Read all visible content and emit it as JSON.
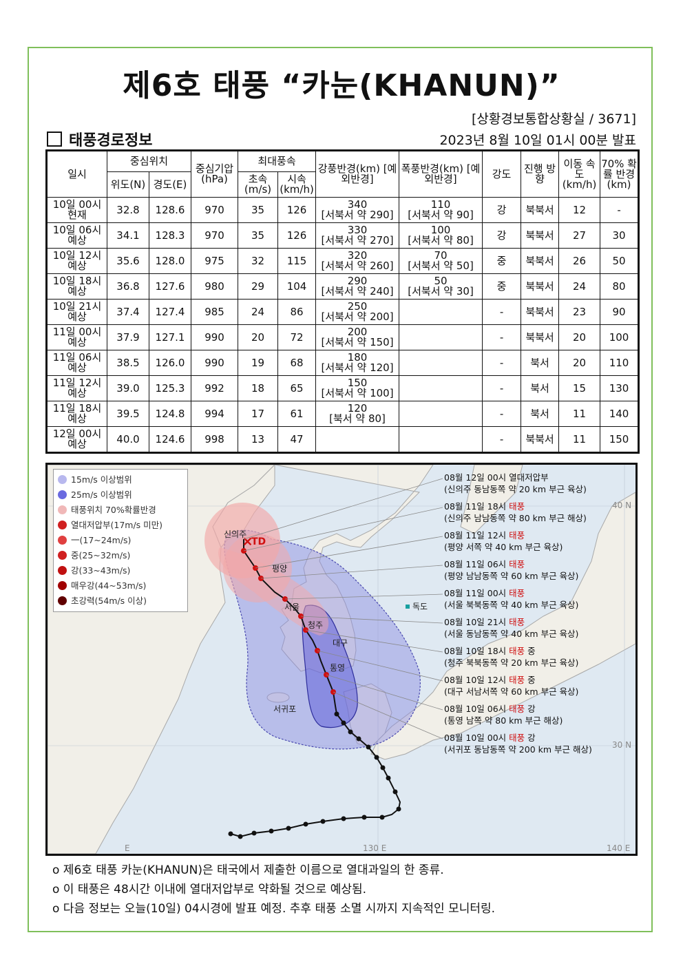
{
  "header": {
    "title": "제6호 태풍 “카눈(KHANUN)”",
    "office": "[상황경보통합상황실 / 3671]",
    "section": "태풍경로정보",
    "issued": "2023년 8월 10일 01시 00분 발표"
  },
  "table": {
    "h_time": "일시",
    "h_center": "중심위치",
    "h_lat": "위도(N)",
    "h_lon": "경도(E)",
    "h_pressure": "중심기압 (hPa)",
    "h_wind": "최대풍속",
    "h_ms": "초속 (m/s)",
    "h_kmh": "시속 (km/h)",
    "h_strong": "강풍반경(km) [예외반경]",
    "h_storm": "폭풍반경(km) [예외반경]",
    "h_intensity": "강도",
    "h_dir": "진행 방향",
    "h_speed": "이동 속도 (km/h)",
    "h_prob": "70% 확률 반경 (km)",
    "rows": [
      {
        "time": "10일 00시",
        "status": "현재",
        "lat": "32.8",
        "lon": "128.6",
        "p": "970",
        "ms": "35",
        "kmh": "126",
        "strong": "340",
        "strong_x": "[서북서 약 290]",
        "storm": "110",
        "storm_x": "[서북서 약 90]",
        "int": "강",
        "dir": "북북서",
        "spd": "12",
        "prob": "-"
      },
      {
        "time": "10일 06시",
        "status": "예상",
        "lat": "34.1",
        "lon": "128.3",
        "p": "970",
        "ms": "35",
        "kmh": "126",
        "strong": "330",
        "strong_x": "[서북서 약 270]",
        "storm": "100",
        "storm_x": "[서북서 약 80]",
        "int": "강",
        "dir": "북북서",
        "spd": "27",
        "prob": "30"
      },
      {
        "time": "10일 12시",
        "status": "예상",
        "lat": "35.6",
        "lon": "128.0",
        "p": "975",
        "ms": "32",
        "kmh": "115",
        "strong": "320",
        "strong_x": "[서북서 약 260]",
        "storm": "70",
        "storm_x": "[서북서 약 50]",
        "int": "중",
        "dir": "북북서",
        "spd": "26",
        "prob": "50"
      },
      {
        "time": "10일 18시",
        "status": "예상",
        "lat": "36.8",
        "lon": "127.6",
        "p": "980",
        "ms": "29",
        "kmh": "104",
        "strong": "290",
        "strong_x": "[서북서 약 240]",
        "storm": "50",
        "storm_x": "[서북서 약 30]",
        "int": "중",
        "dir": "북북서",
        "spd": "24",
        "prob": "80"
      },
      {
        "time": "10일 21시",
        "status": "예상",
        "lat": "37.4",
        "lon": "127.4",
        "p": "985",
        "ms": "24",
        "kmh": "86",
        "strong": "250",
        "strong_x": "[서북서 약 200]",
        "storm": "",
        "storm_x": "",
        "int": "-",
        "dir": "북북서",
        "spd": "23",
        "prob": "90"
      },
      {
        "time": "11일 00시",
        "status": "예상",
        "lat": "37.9",
        "lon": "127.1",
        "p": "990",
        "ms": "20",
        "kmh": "72",
        "strong": "200",
        "strong_x": "[서북서 약 150]",
        "storm": "",
        "storm_x": "",
        "int": "-",
        "dir": "북북서",
        "spd": "20",
        "prob": "100"
      },
      {
        "time": "11일 06시",
        "status": "예상",
        "lat": "38.5",
        "lon": "126.0",
        "p": "990",
        "ms": "19",
        "kmh": "68",
        "strong": "180",
        "strong_x": "[서북서 약 120]",
        "storm": "",
        "storm_x": "",
        "int": "-",
        "dir": "북서",
        "spd": "20",
        "prob": "110"
      },
      {
        "time": "11일 12시",
        "status": "예상",
        "lat": "39.0",
        "lon": "125.3",
        "p": "992",
        "ms": "18",
        "kmh": "65",
        "strong": "150",
        "strong_x": "[서북서 약 100]",
        "storm": "",
        "storm_x": "",
        "int": "-",
        "dir": "북서",
        "spd": "15",
        "prob": "130"
      },
      {
        "time": "11일 18시",
        "status": "예상",
        "lat": "39.5",
        "lon": "124.8",
        "p": "994",
        "ms": "17",
        "kmh": "61",
        "strong": "120",
        "strong_x": "[북서 약 80]",
        "storm": "",
        "storm_x": "",
        "int": "-",
        "dir": "북서",
        "spd": "11",
        "prob": "140"
      },
      {
        "time": "12일 00시",
        "status": "예상",
        "lat": "40.0",
        "lon": "124.6",
        "p": "998",
        "ms": "13",
        "kmh": "47",
        "strong": "",
        "strong_x": "",
        "storm": "",
        "storm_x": "",
        "int": "-",
        "dir": "북북서",
        "spd": "11",
        "prob": "150"
      }
    ]
  },
  "legend": [
    {
      "label": "15m/s 이상범위",
      "color": "#b8b8ee"
    },
    {
      "label": "25m/s 이상범위",
      "color": "#6a6ae0"
    },
    {
      "label": "태풍위치 70%확률반경",
      "color": "#f0b8b8"
    },
    {
      "label": "열대저압부(17m/s 미만)",
      "color": "#d02020"
    },
    {
      "label": "一(17~24m/s)",
      "color": "#e04040"
    },
    {
      "label": "중(25~32m/s)",
      "color": "#d02020"
    },
    {
      "label": "강(33~43m/s)",
      "color": "#c01010"
    },
    {
      "label": "매우강(44~53m/s)",
      "color": "#a00000"
    },
    {
      "label": "초강력(54m/s 이상)",
      "color": "#600000"
    }
  ],
  "annotations": [
    {
      "a": "08월 12일 00시 ",
      "red": "",
      "b": "열대저압부",
      "line2": "(신의주 동남동쪽 약 20 km 부근 육상)"
    },
    {
      "a": "08월 11일 18시 ",
      "red": "태풍",
      "b": "",
      "line2": "(신의주 남남동쪽 약 80 km 부근 해상)"
    },
    {
      "a": "08월 11일 12시 ",
      "red": "태풍",
      "b": "",
      "line2": "(평양 서쪽 약 40 km 부근 육상)"
    },
    {
      "a": "08월 11일 06시 ",
      "red": "태풍",
      "b": "",
      "line2": "(평양 남남동쪽 약 60 km 부근 육상)"
    },
    {
      "a": "08월 11일 00시 ",
      "red": "태풍",
      "b": "",
      "line2": "(서울 북북동쪽 약 40 km 부근 육상)"
    },
    {
      "a": "08월 10일 21시 ",
      "red": "태풍",
      "b": "",
      "line2": "(서울 동남동쪽 약 40 km 부근 육상)"
    },
    {
      "a": "08월 10일 18시 ",
      "red": "태풍",
      "b": " 중",
      "line2": "(청주 북북동쪽 약 20 km 부근 육상)"
    },
    {
      "a": "08월 10일 12시 ",
      "red": "태풍",
      "b": " 중",
      "line2": "(대구 서남서쪽 약 60 km 부근 육상)"
    },
    {
      "a": "08월 10일 06시 ",
      "red": "태풍",
      "b": " 강",
      "line2": "(통영 남쪽 약 80 km 부근 해상)"
    },
    {
      "a": "08월 10일 00시 ",
      "red": "태풍",
      "b": " 강",
      "line2": "(서귀포 동남동쪽 약 200 km 부근 해상)"
    }
  ],
  "map_labels": {
    "sinuiju": "신의주",
    "td": "TD",
    "pyongyang": "평양",
    "seoul": "서울",
    "cheongju": "청주",
    "daegu": "대구",
    "tongyeong": "통영",
    "seogwipo": "서귀포",
    "dokdo": "독도",
    "lat40": "40 N",
    "lat30": "30 N",
    "lon130": "130 E",
    "lon140": "140 E",
    "lon120": "E"
  },
  "notes": [
    "o 제6호 태풍 카눈(KHANUN)은 태국에서 제출한 이름으로 열대과일의 한 종류.",
    "o 이 태풍은 48시간 이내에 열대저압부로 약화될 것으로 예상됨.",
    "o 다음 정보는 오늘(10일) 04시경에 발표 예정. 추후 태풍 소멸 시까지 지속적인 모니터링."
  ]
}
